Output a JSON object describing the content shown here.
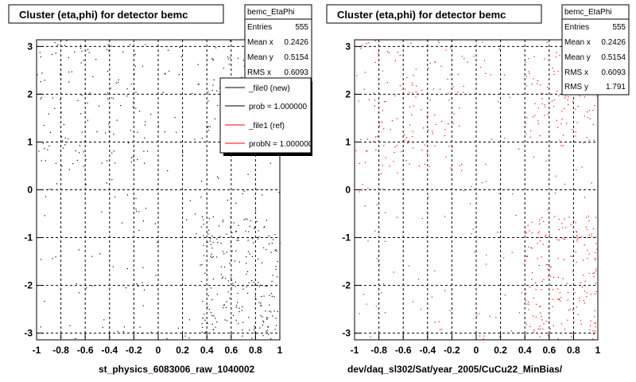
{
  "chart_data": [
    {
      "type": "scatter",
      "title": "Cluster (eta,phi) for detector bemc",
      "xlabel": "st_physics_6083006_raw_1040002",
      "ylabel": "",
      "xlim": [
        -1,
        1
      ],
      "ylim": [
        -3.14,
        3.14
      ],
      "xticks": [
        -1,
        -0.8,
        -0.6,
        -0.4,
        -0.2,
        0,
        0.2,
        0.4,
        0.6,
        0.8,
        1
      ],
      "xtick_labels": [
        "-1",
        "-0.8",
        "-0.6",
        "-0.4",
        "-0.2",
        "0",
        "0.2",
        "0.4",
        "0.6",
        "0.8",
        "1"
      ],
      "yticks": [
        -3,
        -2,
        -1,
        0,
        1,
        2,
        3
      ],
      "ytick_labels": [
        "-3",
        "-2",
        "-1",
        "0",
        "1",
        "2",
        "3"
      ],
      "grid": true,
      "marker_color": "#000000",
      "stats": {
        "name": "bemc_EtaPhi",
        "rows": [
          {
            "label": "Entries",
            "value": "555"
          },
          {
            "label": "Mean x",
            "value": "0.2426"
          },
          {
            "label": "Mean y",
            "value": "0.5154"
          },
          {
            "label": "RMS x",
            "value": "0.6093"
          }
        ]
      },
      "legend": {
        "placement": "top-right",
        "entries": [
          {
            "label": "_file0 (new)",
            "color": "#000000"
          },
          {
            "label": "prob = 1.000000",
            "color": "#000000"
          },
          {
            "label": "_file1 (ref)",
            "color": "#ff0000"
          },
          {
            "label": "probN = 1.000000",
            "color": "#ff0000"
          }
        ]
      }
    },
    {
      "type": "scatter",
      "title": "Cluster (eta,phi) for detector bemc",
      "xlabel": "dev/daq_sl302/Sat/year_2005/CuCu22_MinBias/",
      "ylabel": "",
      "xlim": [
        -1,
        1
      ],
      "ylim": [
        -3.14,
        3.14
      ],
      "xticks": [
        -1,
        -0.8,
        -0.6,
        -0.4,
        -0.2,
        0,
        0.2,
        0.4,
        0.6,
        0.8,
        1
      ],
      "xtick_labels": [
        "-1",
        "-0.8",
        "-0.6",
        "-0.4",
        "-0.2",
        "0",
        "0.2",
        "0.4",
        "0.6",
        "0.8",
        "1"
      ],
      "yticks": [
        -3,
        -2,
        -1,
        0,
        1,
        2,
        3
      ],
      "ytick_labels": [
        "-3",
        "-2",
        "-1",
        "0",
        "1",
        "2",
        "3"
      ],
      "grid": true,
      "marker_color": "#ff0000",
      "stats": {
        "name": "bemc_EtaPhi",
        "rows": [
          {
            "label": "Entries",
            "value": "555"
          },
          {
            "label": "Mean x",
            "value": "0.2426"
          },
          {
            "label": "Mean y",
            "value": "0.5154"
          },
          {
            "label": "RMS x",
            "value": "0.6093"
          },
          {
            "label": "RMS y",
            "value": "1.791"
          }
        ]
      }
    }
  ]
}
